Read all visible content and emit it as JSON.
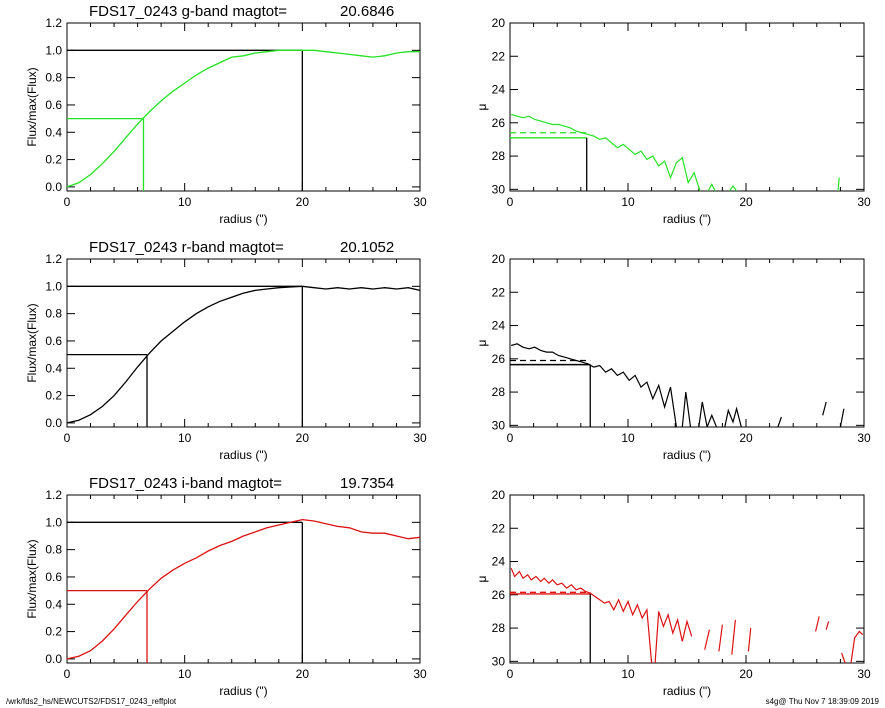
{
  "colors": {
    "g": "#22e222",
    "r": "#000000",
    "i": "#dd1111",
    "axis": "#000000"
  },
  "footer": {
    "left": "/wrk/fds2_hs/NEWCUTS2/FDS17_0243_reffplot",
    "right": "s4g@  Thu Nov  7 18:39:09 2019"
  },
  "chart_data": [
    {
      "type": "line",
      "band": "g",
      "title_label": "FDS17_0243 g-band  magtot=",
      "title_value": "20.6846",
      "xlabel": "radius (\")",
      "ylabel": "Flux/max(Flux)",
      "xlim": [
        0,
        30
      ],
      "ylim": [
        -0.03,
        1.2
      ],
      "xticks": [
        "0",
        "10",
        "20",
        "30"
      ],
      "yticks": [
        "0.0",
        "0.2",
        "0.4",
        "0.6",
        "0.8",
        "1.0",
        "1.2"
      ],
      "series": [
        {
          "x": [
            0,
            1,
            2,
            3,
            4,
            5,
            6,
            7,
            8,
            9,
            10,
            11,
            12,
            13,
            14,
            15,
            16,
            17,
            18,
            19,
            20,
            21,
            22,
            23,
            24,
            25,
            26,
            27,
            28,
            29,
            30
          ],
          "values": [
            0.0,
            0.03,
            0.09,
            0.17,
            0.26,
            0.36,
            0.46,
            0.55,
            0.63,
            0.7,
            0.76,
            0.82,
            0.87,
            0.91,
            0.95,
            0.96,
            0.98,
            0.99,
            1.0,
            1.0,
            1.0,
            1.0,
            0.99,
            0.98,
            0.97,
            0.96,
            0.95,
            0.96,
            0.98,
            0.99,
            0.99
          ]
        }
      ],
      "reference_lines": {
        "r_half": 6.5,
        "half_flux": 0.5,
        "r_total": 20,
        "total_flux": 1.0
      }
    },
    {
      "type": "line",
      "band": "g",
      "xlabel": "radius (\")",
      "ylabel": "μ",
      "xlim": [
        0,
        30
      ],
      "ylim": [
        30.1,
        20
      ],
      "xticks": [
        "0",
        "10",
        "20",
        "30"
      ],
      "yticks": [
        "20",
        "22",
        "24",
        "26",
        "28",
        "30"
      ],
      "series": [
        {
          "segments": [
            [
              [
                0.1,
                25.5
              ],
              [
                0.6,
                25.6
              ],
              [
                1.1,
                25.7
              ],
              [
                1.6,
                25.6
              ],
              [
                2.1,
                25.8
              ],
              [
                2.6,
                25.9
              ],
              [
                3.1,
                26.0
              ],
              [
                3.6,
                26.1
              ],
              [
                4.1,
                26.1
              ],
              [
                4.6,
                26.2
              ],
              [
                5.1,
                26.3
              ],
              [
                5.6,
                26.5
              ],
              [
                6.1,
                26.6
              ],
              [
                6.6,
                26.7
              ],
              [
                7.1,
                26.8
              ],
              [
                7.6,
                27.0
              ],
              [
                8.1,
                26.9
              ],
              [
                8.6,
                27.2
              ],
              [
                9.1,
                27.5
              ],
              [
                9.6,
                27.3
              ],
              [
                10.1,
                27.6
              ],
              [
                10.6,
                27.9
              ],
              [
                11.1,
                27.7
              ],
              [
                11.6,
                28.2
              ],
              [
                12.1,
                28.0
              ],
              [
                12.6,
                28.6
              ],
              [
                13.1,
                28.3
              ],
              [
                13.6,
                29.3
              ],
              [
                14.1,
                28.4
              ],
              [
                14.6,
                28.1
              ],
              [
                15.1,
                29.6
              ],
              [
                15.6,
                29.0
              ],
              [
                16.1,
                30.1
              ]
            ],
            [
              [
                16.8,
                30.1
              ],
              [
                17.1,
                29.7
              ],
              [
                17.4,
                30.1
              ]
            ],
            [
              [
                18.6,
                30.1
              ],
              [
                18.9,
                29.8
              ],
              [
                19.2,
                30.1
              ]
            ],
            [
              [
                27.8,
                30.1
              ],
              [
                27.9,
                29.3
              ]
            ]
          ]
        }
      ],
      "reference_lines": {
        "mu_mean_dashed": 26.6,
        "mu_eff": 26.9,
        "r_half": 6.5
      }
    },
    {
      "type": "line",
      "band": "r",
      "title_label": "FDS17_0243 r-band  magtot=",
      "title_value": "20.1052",
      "xlabel": "radius (\")",
      "ylabel": "Flux/max(Flux)",
      "xlim": [
        0,
        30
      ],
      "ylim": [
        -0.03,
        1.2
      ],
      "xticks": [
        "0",
        "10",
        "20",
        "30"
      ],
      "yticks": [
        "0.0",
        "0.2",
        "0.4",
        "0.6",
        "0.8",
        "1.0",
        "1.2"
      ],
      "series": [
        {
          "x": [
            0,
            1,
            2,
            3,
            4,
            5,
            6,
            7,
            8,
            9,
            10,
            11,
            12,
            13,
            14,
            15,
            16,
            17,
            18,
            19,
            20,
            21,
            22,
            23,
            24,
            25,
            26,
            27,
            28,
            29,
            30
          ],
          "values": [
            0.0,
            0.02,
            0.06,
            0.12,
            0.2,
            0.3,
            0.41,
            0.51,
            0.6,
            0.67,
            0.74,
            0.8,
            0.85,
            0.89,
            0.92,
            0.95,
            0.97,
            0.98,
            0.99,
            0.995,
            1.0,
            0.99,
            0.98,
            0.99,
            0.98,
            0.99,
            0.98,
            0.99,
            0.98,
            0.99,
            0.97
          ]
        }
      ],
      "reference_lines": {
        "r_half": 6.8,
        "half_flux": 0.5,
        "r_total": 20,
        "total_flux": 1.0
      }
    },
    {
      "type": "line",
      "band": "r",
      "xlabel": "radius (\")",
      "ylabel": "μ",
      "xlim": [
        0,
        30
      ],
      "ylim": [
        30.1,
        20
      ],
      "xticks": [
        "0",
        "10",
        "20",
        "30"
      ],
      "yticks": [
        "20",
        "22",
        "24",
        "26",
        "28",
        "30"
      ],
      "series": [
        {
          "segments": [
            [
              [
                0.1,
                25.2
              ],
              [
                0.6,
                25.1
              ],
              [
                1.1,
                25.3
              ],
              [
                1.6,
                25.4
              ],
              [
                2.1,
                25.3
              ],
              [
                2.6,
                25.5
              ],
              [
                3.1,
                25.6
              ],
              [
                3.6,
                25.6
              ],
              [
                4.1,
                25.8
              ],
              [
                4.6,
                25.9
              ],
              [
                5.1,
                26.0
              ],
              [
                5.6,
                26.1
              ],
              [
                6.1,
                26.2
              ],
              [
                6.6,
                26.3
              ],
              [
                7.1,
                26.5
              ],
              [
                7.6,
                26.4
              ],
              [
                8.1,
                26.8
              ],
              [
                8.6,
                26.6
              ],
              [
                9.1,
                27.0
              ],
              [
                9.6,
                26.8
              ],
              [
                10.1,
                27.3
              ],
              [
                10.6,
                27.0
              ],
              [
                11.1,
                27.7
              ],
              [
                11.6,
                27.4
              ],
              [
                12.1,
                28.4
              ],
              [
                12.6,
                27.6
              ],
              [
                13.1,
                28.9
              ],
              [
                13.6,
                27.7
              ],
              [
                14.1,
                30.1
              ]
            ],
            [
              [
                14.6,
                30.1
              ],
              [
                14.9,
                28.0
              ],
              [
                15.3,
                30.1
              ]
            ],
            [
              [
                16.0,
                30.1
              ],
              [
                16.3,
                28.6
              ],
              [
                16.7,
                30.1
              ],
              [
                17.1,
                29.4
              ],
              [
                17.5,
                30.1
              ]
            ],
            [
              [
                18.2,
                30.1
              ],
              [
                18.5,
                29.1
              ],
              [
                18.9,
                29.8
              ],
              [
                19.2,
                29.0
              ],
              [
                19.6,
                30.1
              ]
            ],
            [
              [
                22.7,
                30.1
              ],
              [
                23.0,
                29.5
              ]
            ],
            [
              [
                26.5,
                29.4
              ],
              [
                26.8,
                28.6
              ]
            ],
            [
              [
                28.0,
                30.1
              ],
              [
                28.3,
                29.0
              ]
            ]
          ]
        }
      ],
      "reference_lines": {
        "mu_mean_dashed": 26.1,
        "mu_eff": 26.35,
        "r_half": 6.8
      }
    },
    {
      "type": "line",
      "band": "i",
      "title_label": "FDS17_0243 i-band  magtot=",
      "title_value": "19.7354",
      "xlabel": "radius (\")",
      "ylabel": "Flux/max(Flux)",
      "xlim": [
        0,
        30
      ],
      "ylim": [
        -0.03,
        1.2
      ],
      "xticks": [
        "0",
        "10",
        "20",
        "30"
      ],
      "yticks": [
        "0.0",
        "0.2",
        "0.4",
        "0.6",
        "0.8",
        "1.0",
        "1.2"
      ],
      "series": [
        {
          "x": [
            0,
            1,
            2,
            3,
            4,
            5,
            6,
            7,
            8,
            9,
            10,
            11,
            12,
            13,
            14,
            15,
            16,
            17,
            18,
            19,
            20,
            21,
            22,
            23,
            24,
            25,
            26,
            27,
            28,
            29,
            30
          ],
          "values": [
            0.0,
            0.02,
            0.06,
            0.13,
            0.22,
            0.32,
            0.42,
            0.51,
            0.59,
            0.65,
            0.7,
            0.74,
            0.79,
            0.83,
            0.86,
            0.9,
            0.93,
            0.96,
            0.98,
            1.0,
            1.02,
            1.01,
            0.99,
            0.97,
            0.96,
            0.93,
            0.92,
            0.92,
            0.9,
            0.88,
            0.89
          ]
        }
      ],
      "reference_lines": {
        "r_half": 6.8,
        "half_flux": 0.5,
        "r_total": 20,
        "total_flux": 1.0
      }
    },
    {
      "type": "line",
      "band": "i",
      "xlabel": "radius (\")",
      "ylabel": "μ",
      "xlim": [
        0,
        30
      ],
      "ylim": [
        30.1,
        20
      ],
      "xticks": [
        "0",
        "10",
        "20",
        "30"
      ],
      "yticks": [
        "20",
        "22",
        "24",
        "26",
        "28",
        "30"
      ],
      "series": [
        {
          "segments": [
            [
              [
                0.1,
                24.4
              ],
              [
                0.4,
                24.9
              ],
              [
                0.8,
                24.6
              ],
              [
                1.1,
                25.0
              ],
              [
                1.5,
                24.8
              ],
              [
                1.8,
                25.1
              ],
              [
                2.2,
                24.9
              ],
              [
                2.6,
                25.2
              ],
              [
                2.9,
                25.0
              ],
              [
                3.3,
                25.3
              ],
              [
                3.6,
                25.1
              ],
              [
                4.0,
                25.4
              ],
              [
                4.4,
                25.3
              ],
              [
                4.8,
                25.6
              ],
              [
                5.2,
                25.4
              ],
              [
                5.6,
                25.7
              ],
              [
                6.0,
                25.6
              ],
              [
                6.4,
                25.8
              ],
              [
                6.8,
                25.9
              ],
              [
                7.2,
                26.1
              ],
              [
                7.6,
                26.3
              ],
              [
                8.0,
                26.5
              ],
              [
                8.4,
                26.4
              ],
              [
                8.8,
                26.9
              ],
              [
                9.2,
                26.3
              ],
              [
                9.6,
                27.0
              ],
              [
                10.0,
                26.4
              ],
              [
                10.4,
                27.2
              ],
              [
                10.8,
                26.6
              ],
              [
                11.2,
                27.4
              ],
              [
                11.6,
                26.9
              ],
              [
                12.0,
                30.1
              ]
            ],
            [
              [
                12.3,
                30.1
              ],
              [
                12.6,
                27.0
              ],
              [
                13.0,
                27.9
              ],
              [
                13.4,
                27.2
              ],
              [
                13.8,
                28.3
              ],
              [
                14.2,
                27.5
              ],
              [
                14.6,
                28.8
              ],
              [
                15.0,
                27.6
              ],
              [
                15.4,
                28.5
              ]
            ],
            [
              [
                16.5,
                29.3
              ],
              [
                16.9,
                28.1
              ]
            ],
            [
              [
                17.7,
                29.4
              ],
              [
                18.0,
                27.8
              ]
            ],
            [
              [
                18.8,
                29.6
              ],
              [
                19.1,
                27.5
              ]
            ],
            [
              [
                20.2,
                29.4
              ],
              [
                20.4,
                28.0
              ]
            ],
            [
              [
                25.9,
                28.2
              ],
              [
                26.2,
                27.3
              ]
            ],
            [
              [
                26.8,
                28.1
              ],
              [
                27.0,
                27.6
              ]
            ],
            [
              [
                28.1,
                29.5
              ],
              [
                28.4,
                30.1
              ]
            ],
            [
              [
                28.9,
                30.1
              ],
              [
                29.2,
                28.6
              ],
              [
                29.6,
                28.2
              ],
              [
                29.9,
                28.4
              ]
            ]
          ]
        }
      ],
      "reference_lines": {
        "mu_mean_dashed": 25.85,
        "mu_eff": 25.95,
        "r_half": 6.8
      }
    }
  ]
}
